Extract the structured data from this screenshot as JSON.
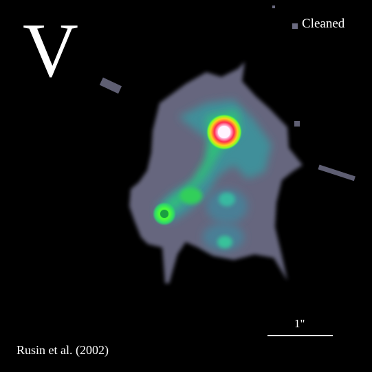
{
  "image": {
    "band_letter": "V",
    "mode_label": "Cleaned",
    "credit": "Rusin et al. (2002)",
    "scale_bar_label": "1\""
  },
  "colors": {
    "background": "#000000",
    "halo": "#6e6e85",
    "inner_halo": "#4d8aa0",
    "green": "#2fd66a",
    "bright_green": "#6cff3a",
    "core_red": "#ff2a4f",
    "core_white": "#fff0ff"
  }
}
